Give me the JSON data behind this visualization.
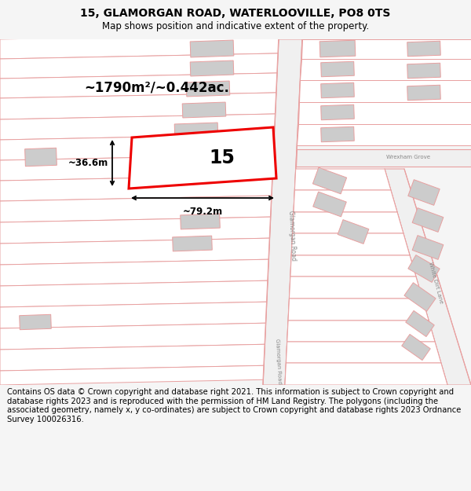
{
  "title": "15, GLAMORGAN ROAD, WATERLOOVILLE, PO8 0TS",
  "subtitle": "Map shows position and indicative extent of the property.",
  "footer": "Contains OS data © Crown copyright and database right 2021. This information is subject to Crown copyright and database rights 2023 and is reproduced with the permission of HM Land Registry. The polygons (including the associated geometry, namely x, y co-ordinates) are subject to Crown copyright and database rights 2023 Ordnance Survey 100026316.",
  "area_label": "~1790m²/~0.442ac.",
  "width_label": "~79.2m",
  "height_label": "~36.6m",
  "plot_number": "15",
  "title_fontsize": 10,
  "subtitle_fontsize": 8.5,
  "footer_fontsize": 7.2,
  "bg_color": "#f5f5f5",
  "map_bg_color": "#ffffff",
  "road_color": "#e8a0a0",
  "highlight_color": "#ee0000",
  "building_color": "#cccccc",
  "fig_width": 6.0,
  "fig_height": 6.25
}
